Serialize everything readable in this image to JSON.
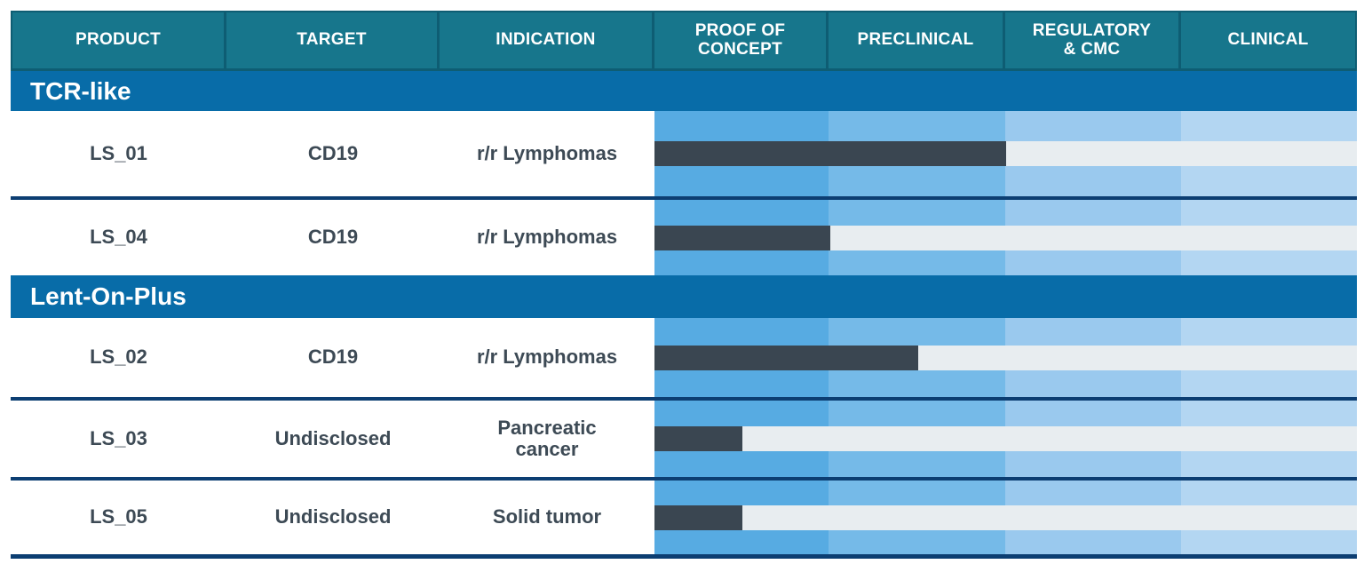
{
  "header": {
    "columns": [
      {
        "label": "PRODUCT"
      },
      {
        "label": "TARGET"
      },
      {
        "label": "INDICATION"
      },
      {
        "label": "PROOF OF\nCONCEPT"
      },
      {
        "label": "PRECLINICAL"
      },
      {
        "label": "REGULATORY\n& CMC"
      },
      {
        "label": "CLINICAL"
      }
    ]
  },
  "sections": [
    {
      "name": "TCR-like",
      "products": [
        {
          "product": "LS_01",
          "target": "CD19",
          "indication": "r/r Lymphomas",
          "progress_pct": 50
        },
        {
          "product": "LS_04",
          "target": "CD19",
          "indication": "r/r Lymphomas",
          "progress_pct": 25
        }
      ]
    },
    {
      "name": "Lent-On-Plus",
      "products": [
        {
          "product": "LS_02",
          "target": "CD19",
          "indication": "r/r Lymphomas",
          "progress_pct": 37.5
        },
        {
          "product": "LS_03",
          "target": "Undisclosed",
          "indication": "Pancreatic\ncancer",
          "progress_pct": 12.5
        },
        {
          "product": "LS_05",
          "target": "Undisclosed",
          "indication": "Solid tumor",
          "progress_pct": 12.5
        }
      ]
    }
  ],
  "colors": {
    "header_teal": "#17768c",
    "header_divider": "#0e5d73",
    "section_blue": "#086ca8",
    "row_divider_navy": "#0c3e72",
    "stage_bands": [
      "#57abe2",
      "#75bae8",
      "#9ac9ee",
      "#b3d6f2"
    ],
    "track": "#e8edf0",
    "bar": "#3a4651",
    "text_dark": "#3d4a55"
  },
  "chart_data": {
    "type": "bar",
    "orientation": "horizontal",
    "title": "Product development pipeline progress",
    "stage_axis": [
      "PROOF OF CONCEPT",
      "PRECLINICAL",
      "REGULATORY & CMC",
      "CLINICAL"
    ],
    "xlim": [
      0,
      4
    ],
    "categories": [
      "LS_01",
      "LS_04",
      "LS_02",
      "LS_03",
      "LS_05"
    ],
    "values_stage_units": [
      2.0,
      1.0,
      1.5,
      0.5,
      0.5
    ],
    "groups": {
      "TCR-like": [
        "LS_01",
        "LS_04"
      ],
      "Lent-On-Plus": [
        "LS_02",
        "LS_03",
        "LS_05"
      ]
    },
    "legend_position": "none",
    "grid": false
  }
}
